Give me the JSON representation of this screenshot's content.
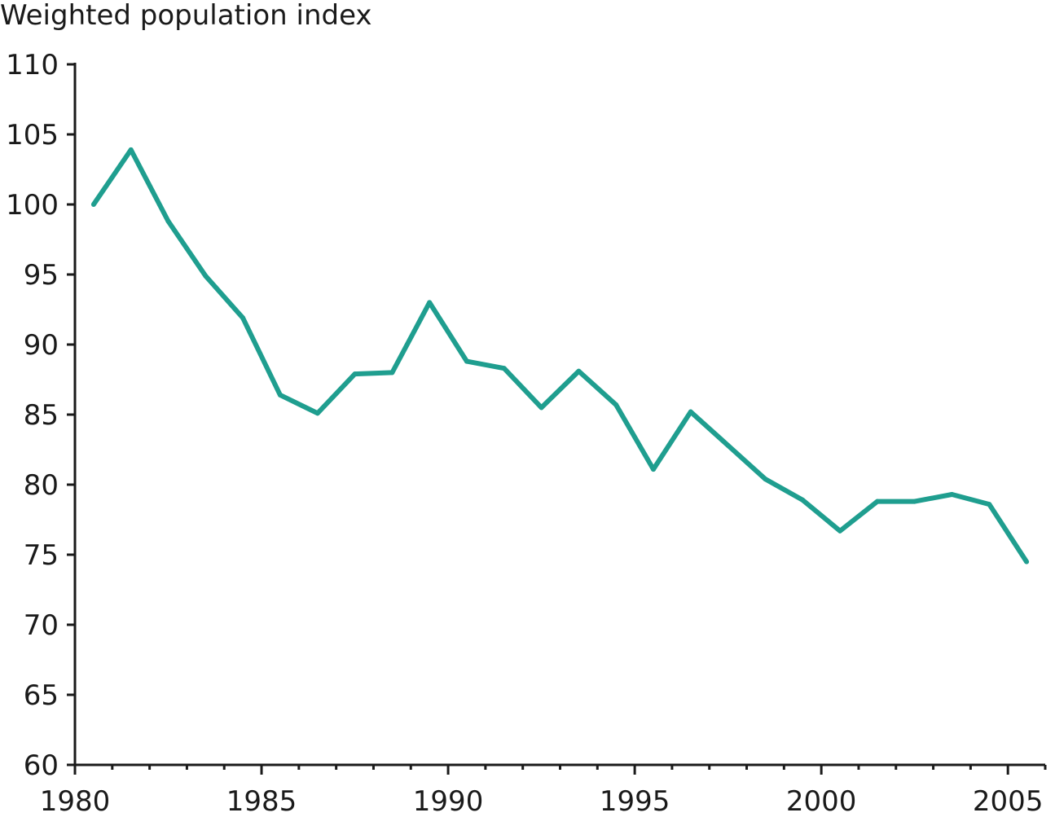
{
  "chart_data": {
    "type": "line",
    "title": "",
    "xlabel": "",
    "ylabel": "Weighted population index",
    "xlim": [
      1980,
      2006
    ],
    "ylim": [
      60,
      110
    ],
    "x_ticks": [
      "1980",
      "1985",
      "1990",
      "1995",
      "2000",
      "2005"
    ],
    "y_ticks": [
      "60",
      "65",
      "70",
      "75",
      "80",
      "85",
      "90",
      "95",
      "100",
      "105",
      "110"
    ],
    "grid": false,
    "legend": "none",
    "line_color": "#1f9e8f",
    "series": [
      {
        "x": [
          1980,
          1981,
          1982,
          1983,
          1984,
          1985,
          1986,
          1987,
          1988,
          1989,
          1990,
          1991,
          1992,
          1993,
          1994,
          1995,
          1996,
          1997,
          1998,
          1999,
          2000,
          2001,
          2002,
          2003,
          2004,
          2005
        ],
        "values": [
          100,
          103.9,
          98.8,
          94.9,
          91.9,
          86.4,
          85.1,
          87.9,
          88.0,
          93.0,
          88.8,
          88.3,
          85.5,
          88.1,
          85.7,
          81.1,
          85.2,
          82.8,
          80.4,
          78.9,
          76.7,
          78.8,
          78.8,
          79.3,
          78.6,
          74.5
        ]
      }
    ]
  }
}
